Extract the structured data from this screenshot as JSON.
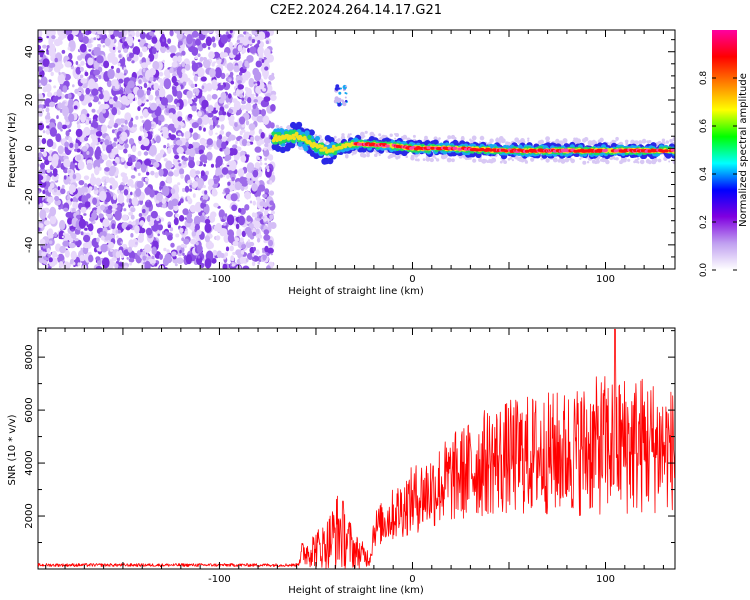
{
  "title": "C2E2.2024.264.14.17.G21",
  "chart_data": [
    {
      "type": "heatmap",
      "xlabel": "Height of straight line (km)",
      "ylabel": "Frequency (Hz)",
      "xlim": [
        -194,
        136
      ],
      "ylim": [
        -50,
        49
      ],
      "x_ticks": [
        -100,
        0,
        100
      ],
      "y_ticks": [
        -40,
        -20,
        0,
        20,
        40
      ],
      "colorbar": {
        "label": "Normalized spectral amplitude",
        "range": [
          0,
          1
        ],
        "ticks": [
          "0.0",
          "0.2",
          "0.4",
          "0.6",
          "0.8"
        ],
        "colors": [
          "#ffffff",
          "#c0a0f0",
          "#8000e0",
          "#0000ff",
          "#00ffff",
          "#00ff00",
          "#ffff00",
          "#ff8000",
          "#ff0000",
          "#ff00a0"
        ]
      },
      "noise_region_x": [
        -194,
        -72
      ],
      "signal_track": [
        {
          "x": -72,
          "f": 4
        },
        {
          "x": -60,
          "f": 5
        },
        {
          "x": -52,
          "f": 2
        },
        {
          "x": -45,
          "f": -1
        },
        {
          "x": -30,
          "f": 2
        },
        {
          "x": -10,
          "f": 1
        },
        {
          "x": 0,
          "f": 0
        },
        {
          "x": 20,
          "f": 0
        },
        {
          "x": 50,
          "f": -1
        },
        {
          "x": 80,
          "f": -1
        },
        {
          "x": 110,
          "f": -1
        },
        {
          "x": 136,
          "f": -1
        }
      ],
      "side_feature": {
        "x": -37,
        "f": 22
      }
    },
    {
      "type": "line",
      "xlabel": "Height of straight line (km)",
      "ylabel": "SNR (10 * v/v)",
      "xlim": [
        -194,
        136
      ],
      "ylim": [
        0,
        9100
      ],
      "x_ticks": [
        -100,
        0,
        100
      ],
      "y_ticks": [
        2000,
        4000,
        6000,
        8000
      ],
      "color": "#ff0000",
      "envelope": [
        {
          "x": -194,
          "mean": 150,
          "amp": 60
        },
        {
          "x": -60,
          "mean": 150,
          "amp": 60
        },
        {
          "x": -57,
          "mean": 600,
          "amp": 500
        },
        {
          "x": -45,
          "mean": 900,
          "amp": 900
        },
        {
          "x": -38,
          "mean": 1500,
          "amp": 1600
        },
        {
          "x": -30,
          "mean": 700,
          "amp": 700
        },
        {
          "x": -22,
          "mean": 400,
          "amp": 300
        },
        {
          "x": -20,
          "mean": 1500,
          "amp": 700
        },
        {
          "x": 0,
          "mean": 2600,
          "amp": 1300
        },
        {
          "x": 20,
          "mean": 3400,
          "amp": 1700
        },
        {
          "x": 40,
          "mean": 4100,
          "amp": 2100
        },
        {
          "x": 60,
          "mean": 4300,
          "amp": 2300
        },
        {
          "x": 80,
          "mean": 4400,
          "amp": 2400
        },
        {
          "x": 100,
          "mean": 4700,
          "amp": 2700
        },
        {
          "x": 120,
          "mean": 4700,
          "amp": 2700
        },
        {
          "x": 136,
          "mean": 4500,
          "amp": 2300
        }
      ],
      "peak": {
        "x": 105,
        "y": 9050
      }
    }
  ]
}
